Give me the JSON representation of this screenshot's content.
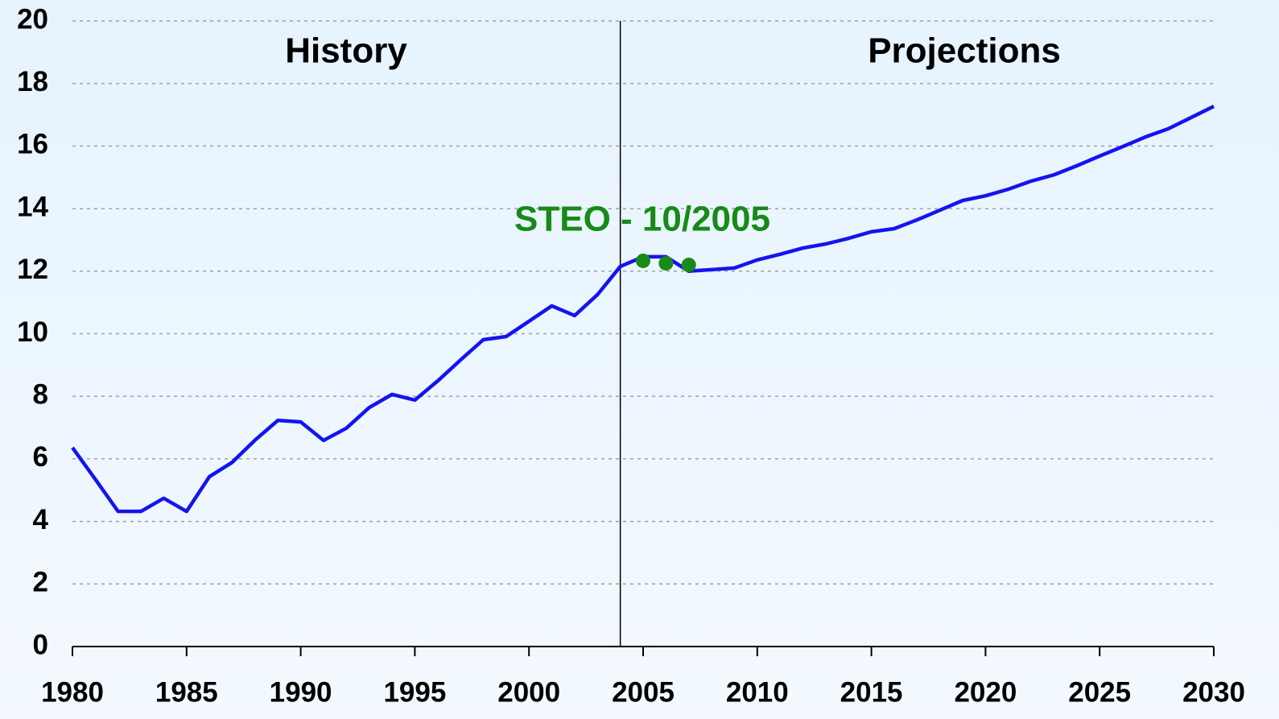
{
  "chart_data": {
    "type": "line",
    "annotations": [
      "History",
      "Projections",
      "STEO - 10/2005"
    ],
    "x": [
      1980,
      1981,
      1982,
      1983,
      1984,
      1985,
      1986,
      1987,
      1988,
      1989,
      1990,
      1991,
      1992,
      1993,
      1994,
      1995,
      1996,
      1997,
      1998,
      1999,
      2000,
      2001,
      2002,
      2003,
      2004,
      2005,
      2006,
      2007,
      2008,
      2009,
      2010,
      2011,
      2012,
      2013,
      2014,
      2015,
      2016,
      2017,
      2018,
      2019,
      2020,
      2021,
      2022,
      2023,
      2024,
      2025,
      2026,
      2027,
      2028,
      2029,
      2030
    ],
    "series": [
      {
        "color": "#1414f0",
        "values": [
          6.36,
          5.35,
          4.32,
          4.32,
          4.74,
          4.32,
          5.43,
          5.89,
          6.6,
          7.23,
          7.18,
          6.59,
          6.98,
          7.64,
          8.06,
          7.88,
          8.49,
          9.16,
          9.81,
          9.91,
          10.4,
          10.89,
          10.58,
          11.25,
          12.15,
          12.46,
          12.46,
          12.0,
          12.05,
          12.1,
          12.36,
          12.54,
          12.74,
          12.87,
          13.05,
          13.26,
          13.36,
          13.64,
          13.95,
          14.26,
          14.41,
          14.62,
          14.88,
          15.08,
          15.37,
          15.68,
          15.98,
          16.29,
          16.55,
          16.91,
          17.27
        ]
      }
    ],
    "points": {
      "color": "#178a17",
      "x": [
        2005,
        2006,
        2007
      ],
      "values": [
        12.33,
        12.25,
        12.2
      ]
    },
    "divider_x": 2004,
    "xlim": [
      1980,
      2030
    ],
    "xticks": [
      1980,
      1985,
      1990,
      1995,
      2000,
      2005,
      2010,
      2015,
      2020,
      2025,
      2030
    ],
    "ylim": [
      0,
      20
    ],
    "yticks": [
      0,
      2,
      4,
      6,
      8,
      10,
      12,
      14,
      16,
      18,
      20
    ],
    "grid": true
  }
}
